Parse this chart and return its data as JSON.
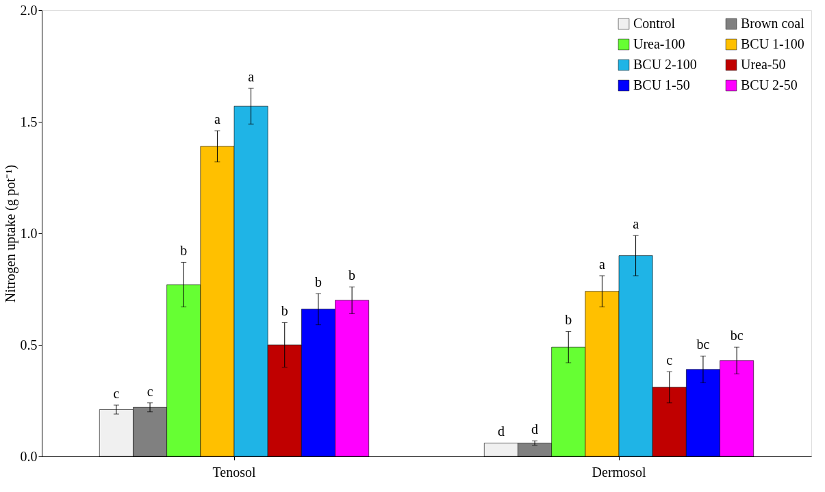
{
  "chart_data": {
    "type": "bar",
    "ylabel": "Nitrogen uptake (g pot⁻¹)",
    "categories": [
      "Tenosol",
      "Dermosol"
    ],
    "ylim": [
      0,
      2
    ],
    "yticks": [
      {
        "value": 0,
        "label": "0.0"
      },
      {
        "value": 0.5,
        "label": "0.5"
      },
      {
        "value": 1,
        "label": "1.0"
      },
      {
        "value": 1.5,
        "label": "1.5"
      },
      {
        "value": 2,
        "label": "2.0"
      }
    ],
    "grid": false,
    "legend": "top right",
    "series": [
      {
        "name": "Control",
        "color": "#f0f0f0",
        "values": [
          0.21,
          0.06
        ],
        "errors": [
          0.02,
          null
        ],
        "value_labels": [
          "c",
          "d"
        ]
      },
      {
        "name": "Brown coal",
        "color": "#808080",
        "values": [
          0.22,
          0.06
        ],
        "errors": [
          0.02,
          0.01
        ],
        "value_labels": [
          "c",
          "d"
        ]
      },
      {
        "name": "Urea-100",
        "color": "#66ff33",
        "values": [
          0.77,
          0.49
        ],
        "errors": [
          0.1,
          0.07
        ],
        "value_labels": [
          "b",
          "b"
        ]
      },
      {
        "name": "BCU 1-100",
        "color": "#ffc000",
        "values": [
          1.39,
          0.74
        ],
        "errors": [
          0.07,
          0.07
        ],
        "value_labels": [
          "a",
          "a"
        ]
      },
      {
        "name": "BCU 2-100",
        "color": "#1fb4e6",
        "values": [
          1.57,
          0.9
        ],
        "errors": [
          0.08,
          0.09
        ],
        "value_labels": [
          "a",
          "a"
        ]
      },
      {
        "name": "Urea-50",
        "color": "#c00000",
        "values": [
          0.5,
          0.31
        ],
        "errors": [
          0.1,
          0.07
        ],
        "value_labels": [
          "b",
          "c"
        ]
      },
      {
        "name": "BCU 1-50",
        "color": "#0000ff",
        "values": [
          0.66,
          0.39
        ],
        "errors": [
          0.07,
          0.06
        ],
        "value_labels": [
          "b",
          "bc"
        ]
      },
      {
        "name": "BCU 2-50",
        "color": "#ff00ff",
        "values": [
          0.7,
          0.43
        ],
        "errors": [
          0.06,
          0.06
        ],
        "value_labels": [
          "b",
          "bc"
        ]
      }
    ]
  }
}
